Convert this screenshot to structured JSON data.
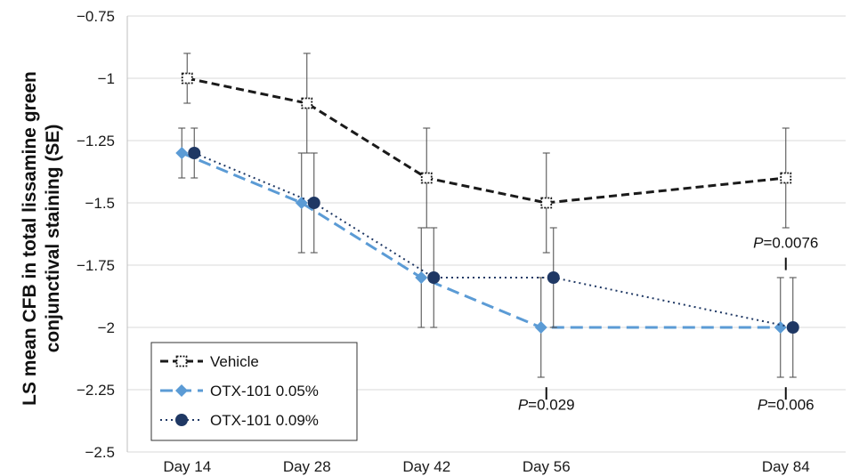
{
  "chart_data": {
    "type": "line",
    "title": "",
    "xlabel": "",
    "ylabel_lines": [
      "LS mean CFB in total lissamine green",
      "conjunctival staining (SE)"
    ],
    "categories": [
      "Day 14",
      "Day 28",
      "Day 42",
      "Day 56",
      "Day 84"
    ],
    "x_days": [
      14,
      28,
      42,
      56,
      84
    ],
    "ylim": [
      -2.5,
      -0.75
    ],
    "yticks": [
      -0.75,
      -1,
      -1.25,
      -1.5,
      -1.75,
      -2,
      -2.25,
      -2.5
    ],
    "ytick_labels": [
      "−0.75",
      "−1",
      "−1.25",
      "−1.5",
      "−1.75",
      "−2",
      "−2.25",
      "−2.5"
    ],
    "grid": "horizontal",
    "legend_position": "bottom-left",
    "series": [
      {
        "name": "Vehicle",
        "color": "#1a1a1a",
        "dash": "dashed",
        "marker": "open-square",
        "values": [
          -1.0,
          -1.1,
          -1.4,
          -1.5,
          -1.4
        ],
        "se_lower": [
          -1.1,
          -1.3,
          -1.6,
          -1.7,
          -1.6
        ],
        "se_upper": [
          -0.9,
          -0.9,
          -1.2,
          -1.3,
          -1.2
        ]
      },
      {
        "name": "OTX-101 0.05%",
        "color": "#5b9bd5",
        "dash": "long-dashed",
        "marker": "diamond",
        "values": [
          -1.3,
          -1.5,
          -1.8,
          -2.0,
          -2.0
        ],
        "se_lower": [
          -1.4,
          -1.7,
          -2.0,
          -2.2,
          -2.2
        ],
        "se_upper": [
          -1.2,
          -1.3,
          -1.6,
          -1.8,
          -1.8
        ]
      },
      {
        "name": "OTX-101 0.09%",
        "color": "#1f3864",
        "dash": "dotted",
        "marker": "circle",
        "values": [
          -1.3,
          -1.5,
          -1.8,
          -1.8,
          -2.0
        ],
        "se_lower": [
          -1.4,
          -1.7,
          -2.0,
          -2.0,
          -2.2
        ],
        "se_upper": [
          -1.2,
          -1.3,
          -1.6,
          -1.6,
          -1.8
        ]
      }
    ],
    "annotations": [
      {
        "label_italic": "P",
        "label_rest": "=0.0076",
        "category": "Day 84",
        "position": "above"
      },
      {
        "label_italic": "P",
        "label_rest": "=0.029",
        "category": "Day 56",
        "position": "below"
      },
      {
        "label_italic": "P",
        "label_rest": "=0.006",
        "category": "Day 84",
        "position": "below"
      }
    ]
  }
}
